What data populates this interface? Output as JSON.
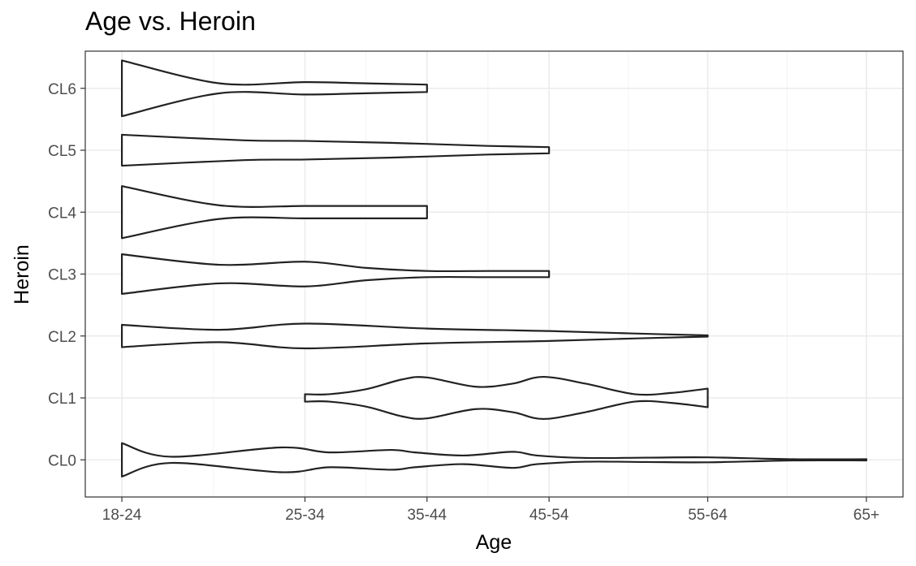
{
  "chart_data": {
    "type": "violin",
    "title": "Age vs. Heroin",
    "xlabel": "Age",
    "ylabel": "Heroin",
    "x_categories": [
      "18-24",
      "25-34",
      "35-44",
      "45-54",
      "55-64",
      "65+"
    ],
    "x_positions": [
      1,
      2,
      3,
      4,
      5,
      6
    ],
    "x_tick_values": [
      1,
      2.5,
      3.5,
      4.5,
      5.8,
      7.1
    ],
    "xlim": [
      0.7,
      7.4
    ],
    "y_categories": [
      "CL0",
      "CL1",
      "CL2",
      "CL3",
      "CL4",
      "CL5",
      "CL6"
    ],
    "ylim": [
      0.4,
      7.6
    ],
    "grid": true,
    "violins": [
      {
        "category": "CL0",
        "x": [
          1,
          1.4,
          2.3,
          2.7,
          3.2,
          3.4,
          3.8,
          4.2,
          4.4,
          4.8,
          5.3,
          5.8,
          6.5,
          7.1
        ],
        "half_width": [
          0.27,
          0.05,
          0.2,
          0.12,
          0.16,
          0.12,
          0.07,
          0.13,
          0.07,
          0.03,
          0.035,
          0.04,
          0.01,
          0.01
        ]
      },
      {
        "category": "CL1",
        "x": [
          2.5,
          2.7,
          3.0,
          3.3,
          3.5,
          3.9,
          4.2,
          4.45,
          4.8,
          5.2,
          5.5,
          5.8
        ],
        "half_width": [
          0.06,
          0.06,
          0.14,
          0.3,
          0.33,
          0.18,
          0.23,
          0.34,
          0.23,
          0.06,
          0.08,
          0.15
        ]
      },
      {
        "category": "CL2",
        "x": [
          1,
          1.8,
          2.5,
          3.5,
          4.5,
          5.2,
          5.8
        ],
        "half_width": [
          0.18,
          0.1,
          0.2,
          0.12,
          0.08,
          0.04,
          0.01
        ]
      },
      {
        "category": "CL3",
        "x": [
          1,
          1.8,
          2.5,
          3.0,
          3.5,
          4.0,
          4.5
        ],
        "half_width": [
          0.32,
          0.15,
          0.2,
          0.1,
          0.05,
          0.05,
          0.05
        ]
      },
      {
        "category": "CL4",
        "x": [
          1,
          1.8,
          2.5,
          3.0,
          3.5
        ],
        "half_width": [
          0.42,
          0.11,
          0.1,
          0.1,
          0.1
        ]
      },
      {
        "category": "CL5",
        "x": [
          1,
          2.0,
          2.5,
          3.2,
          4.0,
          4.5
        ],
        "half_width": [
          0.25,
          0.16,
          0.15,
          0.12,
          0.07,
          0.05
        ]
      },
      {
        "category": "CL6",
        "x": [
          1,
          1.8,
          2.5,
          3.0,
          3.5
        ],
        "half_width": [
          0.45,
          0.08,
          0.1,
          0.08,
          0.06
        ]
      }
    ]
  }
}
